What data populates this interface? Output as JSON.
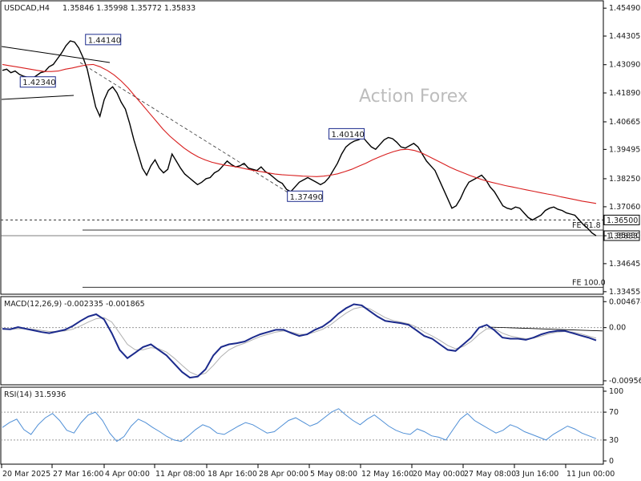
{
  "header": {
    "symbol_timeframe": "USDCAD,H4",
    "ohlc": "1.35846 1.35998 1.35772 1.35833"
  },
  "watermark": "Action Forex",
  "chart_data": [
    {
      "type": "line",
      "panel": "price",
      "price_axis_ticks": [
        "1.45490",
        "1.44305",
        "1.43090",
        "1.41890",
        "1.40665",
        "1.39495",
        "1.38250",
        "1.37060",
        "1.35830",
        "1.34645",
        "1.33455"
      ],
      "ylim": [
        1.3345,
        1.457
      ],
      "series": [
        {
          "values": [
            1.4285,
            1.429,
            1.4275,
            1.4282,
            1.4268,
            1.426,
            1.4255,
            1.425,
            1.4262,
            1.4275,
            1.428,
            1.43,
            1.431,
            1.4335,
            1.436,
            1.439,
            1.441,
            1.4405,
            1.438,
            1.434,
            1.429,
            1.421,
            1.413,
            1.409,
            1.416,
            1.42,
            1.4215,
            1.419,
            1.415,
            1.412,
            1.406,
            1.399,
            1.393,
            1.387,
            1.384,
            1.388,
            1.3905,
            1.387,
            1.385,
            1.3865,
            1.393,
            1.39,
            1.387,
            1.3845,
            1.383,
            1.3815,
            1.38,
            1.381,
            1.3825,
            1.383,
            1.385,
            1.386,
            1.388,
            1.39,
            1.3885,
            1.3875,
            1.388,
            1.389,
            1.387,
            1.3865,
            1.386,
            1.3875,
            1.3855,
            1.3845,
            1.383,
            1.3815,
            1.3805,
            1.378,
            1.377,
            1.379,
            1.381,
            1.382,
            1.383,
            1.382,
            1.381,
            1.38,
            1.381,
            1.383,
            1.386,
            1.389,
            1.393,
            1.396,
            1.3975,
            1.3985,
            1.399,
            1.4001,
            1.398,
            1.396,
            1.395,
            1.397,
            1.399,
            1.4,
            1.3995,
            1.398,
            1.396,
            1.3955,
            1.3965,
            1.3975,
            1.396,
            1.393,
            1.39,
            1.388,
            1.386,
            1.382,
            1.378,
            1.374,
            1.37,
            1.371,
            1.374,
            1.378,
            1.381,
            1.382,
            1.383,
            1.384,
            1.382,
            1.379,
            1.377,
            1.374,
            1.371,
            1.37,
            1.3695,
            1.3705,
            1.37,
            1.368,
            1.366,
            1.365,
            1.366,
            1.367,
            1.369,
            1.37,
            1.3705,
            1.3695,
            1.369,
            1.368,
            1.3675,
            1.367,
            1.365,
            1.363,
            1.3615,
            1.3595,
            1.3583
          ]
        },
        {
          "values": [
            1.431,
            1.4305,
            1.43,
            1.4295,
            1.429,
            1.4285,
            1.428,
            1.428,
            1.4282,
            1.429,
            1.4295,
            1.4302,
            1.4308,
            1.431,
            1.43,
            1.4285,
            1.4265,
            1.424,
            1.421,
            1.4175,
            1.414,
            1.4105,
            1.407,
            1.4035,
            1.4005,
            1.398,
            1.3955,
            1.3935,
            1.3918,
            1.3905,
            1.3895,
            1.3888,
            1.3882,
            1.3878,
            1.3872,
            1.3866,
            1.386,
            1.3855,
            1.385,
            1.3845,
            1.3842,
            1.384,
            1.3838,
            1.3836,
            1.3835,
            1.3834,
            1.3836,
            1.384,
            1.3846,
            1.3855,
            1.3865,
            1.3878,
            1.389,
            1.3905,
            1.3918,
            1.393,
            1.394,
            1.3948,
            1.395,
            1.3945,
            1.3935,
            1.392,
            1.3905,
            1.389,
            1.3875,
            1.3862,
            1.385,
            1.3838,
            1.3828,
            1.3818,
            1.381,
            1.3803,
            1.3796,
            1.379,
            1.3784,
            1.3778,
            1.3772,
            1.3766,
            1.376,
            1.3755,
            1.3748,
            1.3742,
            1.3736,
            1.373,
            1.3725,
            1.372
          ]
        }
      ],
      "annotations": [
        {
          "text": "1.44140",
          "x": 0.14,
          "price": 1.4414
        },
        {
          "text": "1.42340",
          "x": 0.03,
          "price": 1.4234
        },
        {
          "text": "1.40140",
          "x": 0.55,
          "price": 1.4014
        },
        {
          "text": "1.37490",
          "x": 0.48,
          "price": 1.3749
        }
      ],
      "levels": [
        {
          "price": 1.365,
          "label": "1.36500",
          "style": "dashed"
        },
        {
          "price": 1.3607,
          "label": "FE 61.8",
          "style": "solid"
        },
        {
          "price": 1.3364,
          "label": "FE 100.0",
          "style": "solid"
        }
      ],
      "last_price": "1.35833"
    },
    {
      "type": "line",
      "panel": "macd",
      "title": "MACD(12,26,9) -0.002335 -0.001865",
      "axis_ticks": [
        "0.004674",
        "0.00",
        "-0.009568"
      ],
      "ylim": [
        -0.01,
        0.005
      ],
      "series": [
        {
          "values": [
            -0.0002,
            -0.0003,
            0.0001,
            -0.0002,
            -0.0005,
            -0.0008,
            -0.001,
            -0.0007,
            -0.0004,
            0.0003,
            0.0012,
            0.002,
            0.0024,
            0.0015,
            -0.001,
            -0.004,
            -0.0055,
            -0.0045,
            -0.0035,
            -0.003,
            -0.004,
            -0.005,
            -0.0065,
            -0.008,
            -0.009,
            -0.0088,
            -0.0075,
            -0.005,
            -0.0035,
            -0.003,
            -0.0028,
            -0.0025,
            -0.0018,
            -0.0012,
            -0.0008,
            -0.0004,
            -0.0004,
            -0.001,
            -0.0015,
            -0.0012,
            -0.0004,
            0.0002,
            0.0012,
            0.0025,
            0.0035,
            0.0042,
            0.004,
            0.003,
            0.002,
            0.0012,
            0.001,
            0.0008,
            0.0005,
            -0.0005,
            -0.0015,
            -0.002,
            -0.003,
            -0.004,
            -0.0042,
            -0.003,
            -0.0018,
            0.0,
            0.0005,
            -0.0005,
            -0.0018,
            -0.002,
            -0.002,
            -0.0022,
            -0.0018,
            -0.0012,
            -0.0008,
            -0.0006,
            -0.0006,
            -0.001,
            -0.0014,
            -0.0018,
            -0.0023
          ]
        },
        {
          "values": [
            -0.0003,
            -0.0003,
            -0.0002,
            -0.0002,
            -0.0003,
            -0.0005,
            -0.0007,
            -0.0007,
            -0.0006,
            -0.0003,
            0.0003,
            0.001,
            0.0016,
            0.0018,
            0.001,
            -0.001,
            -0.003,
            -0.004,
            -0.004,
            -0.0036,
            -0.0038,
            -0.0044,
            -0.0055,
            -0.0068,
            -0.008,
            -0.0086,
            -0.0082,
            -0.0068,
            -0.0052,
            -0.004,
            -0.0033,
            -0.0028,
            -0.0022,
            -0.0016,
            -0.0012,
            -0.0008,
            -0.0006,
            -0.0008,
            -0.0012,
            -0.0012,
            -0.0008,
            -0.0003,
            0.0005,
            0.0016,
            0.0026,
            0.0034,
            0.0037,
            0.0034,
            0.0026,
            0.0018,
            0.0013,
            0.001,
            0.0007,
            0.0001,
            -0.0008,
            -0.0015,
            -0.0023,
            -0.0032,
            -0.0038,
            -0.0034,
            -0.0025,
            -0.0012,
            -0.0002,
            -0.0002,
            -0.001,
            -0.0015,
            -0.0018,
            -0.002,
            -0.0019,
            -0.0015,
            -0.0011,
            -0.0008,
            -0.0007,
            -0.0008,
            -0.0011,
            -0.0015,
            -0.0019
          ]
        }
      ]
    },
    {
      "type": "line",
      "panel": "rsi",
      "title": "RSI(14) 31.5936",
      "axis_ticks": [
        "100",
        "70",
        "30",
        "0"
      ],
      "ylim": [
        0,
        100
      ],
      "series": [
        {
          "values": [
            48,
            55,
            60,
            45,
            38,
            52,
            62,
            68,
            58,
            44,
            40,
            55,
            66,
            70,
            58,
            40,
            28,
            35,
            50,
            60,
            55,
            48,
            42,
            35,
            30,
            28,
            36,
            45,
            52,
            48,
            40,
            38,
            44,
            50,
            55,
            52,
            46,
            40,
            42,
            50,
            58,
            62,
            56,
            50,
            54,
            62,
            70,
            75,
            66,
            58,
            52,
            60,
            66,
            58,
            50,
            44,
            40,
            38,
            46,
            42,
            36,
            34,
            30,
            45,
            60,
            68,
            58,
            52,
            46,
            40,
            44,
            52,
            48,
            42,
            38,
            34,
            30,
            38,
            44,
            50,
            46,
            40,
            36,
            32
          ]
        }
      ],
      "levels": [
        70,
        30
      ]
    }
  ],
  "x_axis_labels": [
    "20 Mar 2025",
    "27 Mar 16:00",
    "4 Apr 00:00",
    "11 Apr 08:00",
    "18 Apr 16:00",
    "28 Apr 00:00",
    "5 May 08:00",
    "12 May 16:00",
    "20 May 00:00",
    "27 May 08:00",
    "3 Jun 16:00",
    "11 Jun 00:00"
  ],
  "colors": {
    "price_line": "#000000",
    "moving_average": "#d81e1e",
    "macd": "#1b2a8c",
    "signal": "#b0b0b0",
    "rsi": "#4f8fd6",
    "background": "#ffffff"
  }
}
